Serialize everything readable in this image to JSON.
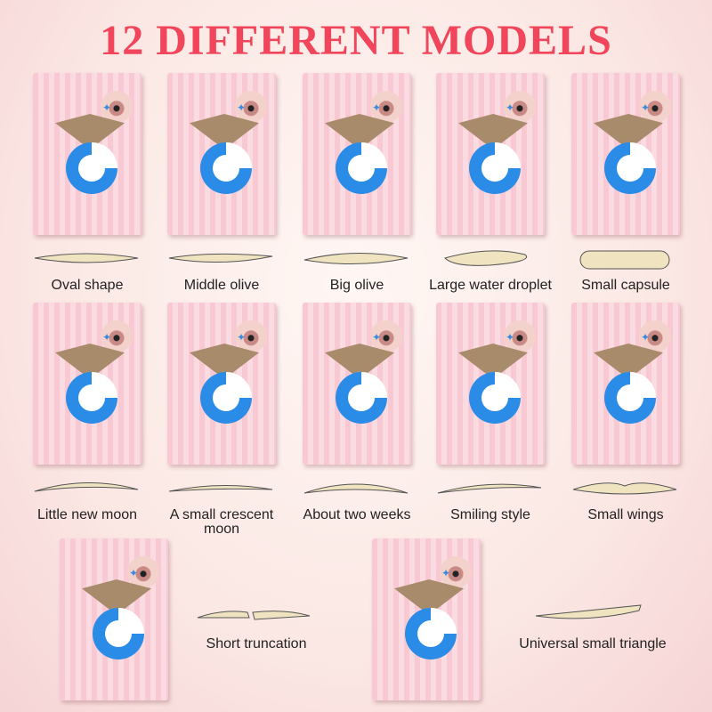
{
  "title": "12 DIFFERENT MODELS",
  "models": [
    {
      "label": "Oval shape",
      "shape": "oval"
    },
    {
      "label": "Middle olive",
      "shape": "olive"
    },
    {
      "label": "Big olive",
      "shape": "big-olive"
    },
    {
      "label": "Large water droplet",
      "shape": "droplet"
    },
    {
      "label": "Small capsule",
      "shape": "capsule"
    },
    {
      "label": "Little new moon",
      "shape": "moon"
    },
    {
      "label": "A small crescent moon",
      "shape": "crescent"
    },
    {
      "label": "About two weeks",
      "shape": "arc"
    },
    {
      "label": "Smiling style",
      "shape": "smile"
    },
    {
      "label": "Small wings",
      "shape": "wings"
    },
    {
      "label": "Short truncation",
      "shape": "truncation"
    },
    {
      "label": "Universal small triangle",
      "shape": "triangle"
    }
  ]
}
